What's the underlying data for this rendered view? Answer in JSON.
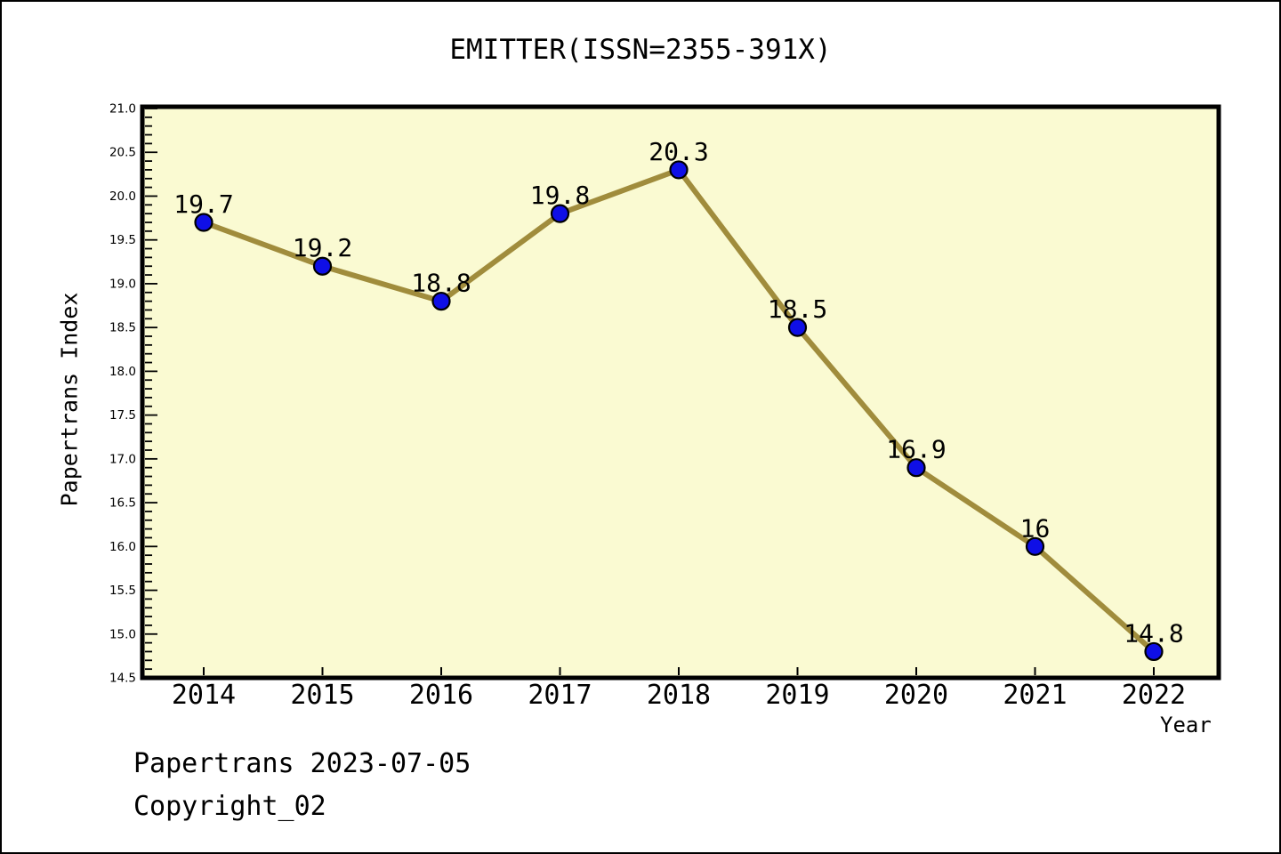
{
  "window": {
    "background": "#ffffff",
    "border_color": "#000000"
  },
  "chart_data": {
    "type": "line",
    "title": "EMITTER(ISSN=2355-391X)",
    "xlabel": "Year",
    "ylabel": "Papertrans Index",
    "categories": [
      "2014",
      "2015",
      "2016",
      "2017",
      "2018",
      "2019",
      "2020",
      "2021",
      "2022"
    ],
    "values": [
      19.7,
      19.2,
      18.8,
      19.8,
      20.3,
      18.5,
      16.9,
      16,
      14.8
    ],
    "point_labels": [
      "19.7",
      "19.2",
      "18.8",
      "19.8",
      "20.3",
      "18.5",
      "16.9",
      "16",
      "14.8"
    ],
    "ylim": [
      14.5,
      21.0
    ],
    "y_tick_labels": [
      "21.0",
      "20.5",
      "20.0",
      "19.5",
      "19.0",
      "18.5",
      "18.0",
      "17.5",
      "17.0",
      "16.5",
      "16.0",
      "15.5",
      "15.0",
      "14.5"
    ],
    "y_minor_step": 0.1,
    "grid": "off",
    "legend": "none",
    "colors": {
      "line": "#a08c3c",
      "marker_fill": "#0f0fe6",
      "marker_edge": "#000000",
      "plot_bg": "#fafad2",
      "axis": "#000000",
      "text": "#000000"
    }
  },
  "footer": {
    "line1": "Papertrans 2023-07-05",
    "line2": "Copyright_02"
  }
}
